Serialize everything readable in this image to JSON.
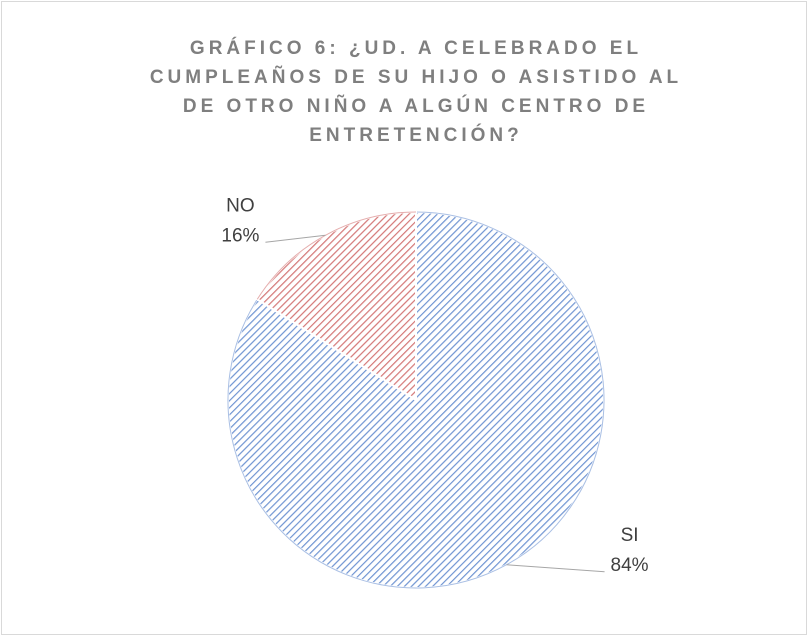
{
  "chart_data": {
    "type": "pie",
    "title": "GRÁFICO 6: ¿UD. A CELEBRADO EL CUMPLEAÑOS DE SU HIJO O ASISTIDO AL DE OTRO NIÑO A ALGÚN CENTRO DE ENTRETENCIÓN?",
    "categories": [
      "SI",
      "NO"
    ],
    "values": [
      84,
      16
    ],
    "value_labels": [
      "84%",
      "16%"
    ],
    "colors": [
      "#6f94d2",
      "#d47777"
    ]
  }
}
